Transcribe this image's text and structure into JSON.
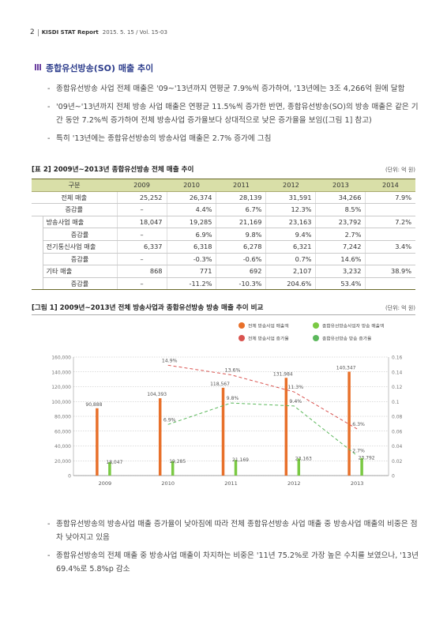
{
  "header": {
    "page_number": "2",
    "publication": "KISDI STAT Report",
    "issue": "2015. 5. 15 / Vol. 15-03"
  },
  "section": {
    "title": "종합유선방송(SO) 매출 추이"
  },
  "intro_bullets": [
    "종합유선방송 사업 전체 매출은 '09~'13년까지 연평균 7.9%씩 증가하여, '13년에는 3조 4,266억 원에 달함",
    "'09년~'13년까지 전체 방송 사업 매출은 연평균 11.5%씩 증가한 반면, 종합유선방송(SO)의 방송 매출은 같은 기간 동안 7.2%씩 증가하여 전체 방송사업 증가율보다 상대적으로 낮은 증가율을 보임([그림 1] 참고)",
    "특히 '13년에는 종합유선방송의 방송사업 매출은 2.7% 증가에 그침"
  ],
  "table": {
    "title": "[표 2] 2009년~2013년 종합유선방송 전체 매출 추이",
    "unit": "(단위: 억 원)",
    "headers": [
      "구분",
      "2009",
      "2010",
      "2011",
      "2012",
      "2013",
      "2014"
    ],
    "rows": [
      {
        "label": "전체 매출",
        "values": [
          "25,252",
          "26,374",
          "28,139",
          "31,591",
          "34,266",
          "7.9%"
        ]
      },
      {
        "label": "증감률",
        "values": [
          "–",
          "4.4%",
          "6.7%",
          "12.3%",
          "8.5%",
          ""
        ]
      },
      {
        "label": "방송사업 매출",
        "values": [
          "18,047",
          "19,285",
          "21,169",
          "23,163",
          "23,792",
          "7.2%"
        ]
      },
      {
        "label": "증감률",
        "values": [
          "–",
          "6.9%",
          "9.8%",
          "9.4%",
          "2.7%",
          ""
        ]
      },
      {
        "label": "전기통신사업 매출",
        "values": [
          "6,337",
          "6,318",
          "6,278",
          "6,321",
          "7,242",
          "3.4%"
        ]
      },
      {
        "label": "증감률",
        "values": [
          "–",
          "-0.3%",
          "-0.6%",
          "0.7%",
          "14.6%",
          ""
        ]
      },
      {
        "label": "기타 매출",
        "values": [
          "868",
          "771",
          "692",
          "2,107",
          "3,232",
          "38.9%"
        ]
      },
      {
        "label": "증감률",
        "values": [
          "–",
          "-11.2%",
          "-10.3%",
          "204.6%",
          "53.4%",
          ""
        ]
      }
    ]
  },
  "chart_data": {
    "type": "bar",
    "title": "[그림 1] 2009년~2013년 전체 방송사업과 종합유선방송 방송 매출 추이 비교",
    "unit": "(단위: 억 원)",
    "categories": [
      "2009",
      "2010",
      "2011",
      "2012",
      "2013"
    ],
    "y_left": {
      "min": 0,
      "max": 160000,
      "ticks": [
        "0",
        "20,000",
        "40,000",
        "60,000",
        "80,000",
        "100,000",
        "120,000",
        "140,000",
        "160,000"
      ]
    },
    "y_right": {
      "min": 0,
      "max": 0.16,
      "ticks": [
        "0",
        "0.02",
        "0.04",
        "0.06",
        "0.08",
        "0.1",
        "0.12",
        "0.14",
        "0.16"
      ]
    },
    "series": [
      {
        "name": "전체 방송사업 매출액",
        "kind": "bar",
        "axis": "left",
        "color": "#e8702a",
        "values": [
          90888,
          104393,
          118567,
          131984,
          140347
        ],
        "labels": [
          "90,888",
          "104,393",
          "118,567",
          "131,984",
          "140,347"
        ]
      },
      {
        "name": "종합유선방송사업자 방송 매출액",
        "kind": "bar",
        "axis": "left",
        "color": "#7ac943",
        "values": [
          18047,
          19285,
          21169,
          23163,
          23792
        ],
        "labels": [
          "18,047",
          "19,285",
          "21,169",
          "23,163",
          "23,792"
        ]
      },
      {
        "name": "전체 방송사업 증가율",
        "kind": "line",
        "axis": "right",
        "color": "#d9534f",
        "values": [
          null,
          0.149,
          0.136,
          0.113,
          0.063
        ],
        "labels": [
          "",
          "14.9%",
          "13.6%",
          "11.3%",
          "6.3%"
        ]
      },
      {
        "name": "종합유선방송 방송 증가율",
        "kind": "line",
        "axis": "right",
        "color": "#5cb85c",
        "values": [
          null,
          0.069,
          0.098,
          0.094,
          0.027
        ],
        "labels": [
          "",
          "6.9%",
          "9.8%",
          "9.4%",
          "2.7%"
        ]
      }
    ],
    "legend_position": "top-right",
    "grid": true
  },
  "closing_bullets": [
    "종합유선방송의 방송사업 매출 증가율이 낮아짐에 따라 전체 종합유선방송 사업 매출 중 방송사업 매출의 비중은 점차 낮아지고 있음",
    "종합유선방송의 전체 매출 중 방송사업 매출이 차지하는 비중은 '11년 75.2%로 가장 높은 수치를 보였으나, '13년 69.4%로 5.8%p 감소"
  ]
}
